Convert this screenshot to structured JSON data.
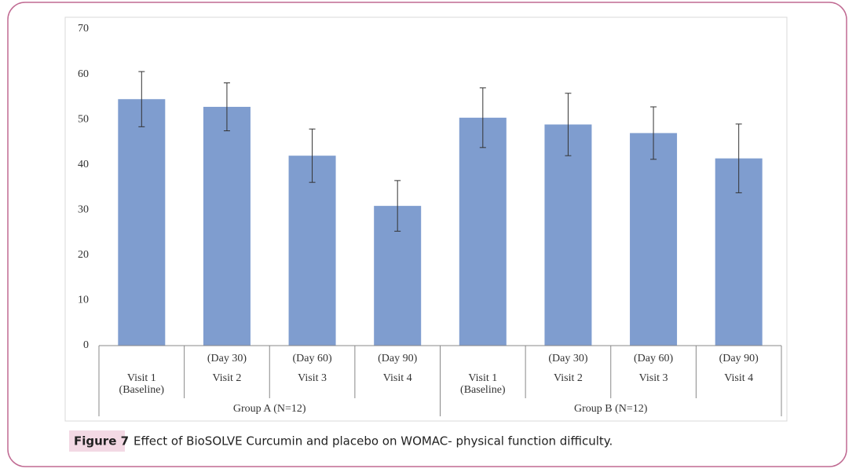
{
  "chart_data": {
    "type": "bar",
    "categories": [
      {
        "visit": "Visit 1",
        "note": "(Baseline)"
      },
      {
        "day": "(Day 30)",
        "visit": "Visit 2"
      },
      {
        "day": "(Day 60)",
        "visit": "Visit 3"
      },
      {
        "day": "(Day 90)",
        "visit": "Visit 4"
      },
      {
        "visit": "Visit 1",
        "note": "(Baseline)"
      },
      {
        "day": "(Day 30)",
        "visit": "Visit 2"
      },
      {
        "day": "(Day 60)",
        "visit": "Visit 3"
      },
      {
        "day": "(Day 90)",
        "visit": "Visit 4"
      }
    ],
    "groups": [
      "Group A (N=12)",
      "Group B (N=12)"
    ],
    "values": [
      54.5,
      52.8,
      42.0,
      30.9,
      50.4,
      48.9,
      47.0,
      41.4
    ],
    "errors": [
      6.1,
      5.3,
      5.9,
      5.6,
      6.6,
      6.9,
      5.8,
      7.6
    ],
    "color": "#7f9dcf",
    "ylim": [
      0,
      70
    ],
    "yticks": [
      0,
      10,
      20,
      30,
      40,
      50,
      60,
      70
    ],
    "grid": false
  },
  "caption": {
    "label": "Figure 7",
    "text": "Effect of BioSOLVE Curcumin and placebo on WOMAC- physical function difficulty."
  }
}
